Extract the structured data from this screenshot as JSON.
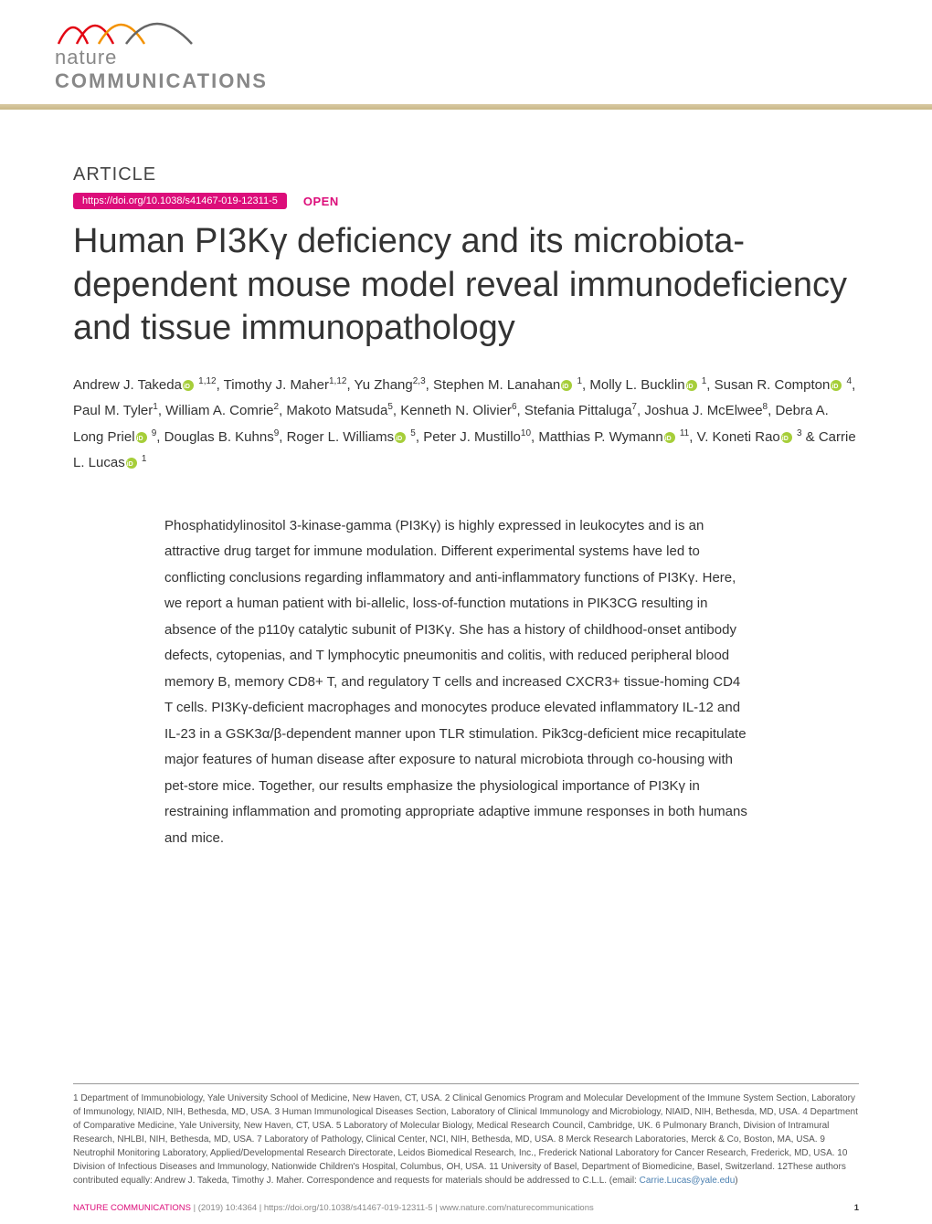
{
  "journal": {
    "name_line1": "nature",
    "name_line2": "COMMUNICATIONS",
    "wave_colors": [
      "#e30613",
      "#f39200",
      "#666666"
    ],
    "banner_gradient": [
      "#d8c9a3",
      "#c9b888"
    ]
  },
  "article_label": "ARTICLE",
  "doi": "https://doi.org/10.1038/s41467-019-12311-5",
  "doi_pill_bg": "#dc0d7a",
  "open_label": "OPEN",
  "title": "Human PI3Kγ deficiency and its microbiota-dependent mouse model reveal immunodeficiency and tissue immunopathology",
  "title_fontsize": 38,
  "authors_html": "Andrew J. Takeda{orcid} <sup>1,12</sup>, Timothy J. Maher<sup>1,12</sup>, Yu Zhang<sup>2,3</sup>, Stephen M. Lanahan{orcid} <sup>1</sup>, Molly L. Bucklin{orcid} <sup>1</sup>, Susan R. Compton{orcid} <sup>4</sup>, Paul M. Tyler<sup>1</sup>, William A. Comrie<sup>2</sup>, Makoto Matsuda<sup>5</sup>, Kenneth N. Olivier<sup>6</sup>, Stefania Pittaluga<sup>7</sup>, Joshua J. McElwee<sup>8</sup>, Debra A. Long Priel{orcid} <sup>9</sup>, Douglas B. Kuhns<sup>9</sup>, Roger L. Williams{orcid} <sup>5</sup>, Peter J. Mustillo<sup>10</sup>, Matthias P. Wymann{orcid} <sup>11</sup>, V. Koneti Rao{orcid} <sup>3</sup> & Carrie L. Lucas{orcid} <sup>1</sup>",
  "abstract": "Phosphatidylinositol 3-kinase-gamma (PI3Kγ) is highly expressed in leukocytes and is an attractive drug target for immune modulation. Different experimental systems have led to conflicting conclusions regarding inflammatory and anti-inflammatory functions of PI3Kγ. Here, we report a human patient with bi-allelic, loss-of-function mutations in PIK3CG resulting in absence of the p110γ catalytic subunit of PI3Kγ. She has a history of childhood-onset antibody defects, cytopenias, and T lymphocytic pneumonitis and colitis, with reduced peripheral blood memory B, memory CD8+ T, and regulatory T cells and increased CXCR3+ tissue-homing CD4 T cells. PI3Kγ-deficient macrophages and monocytes produce elevated inflammatory IL-12 and IL-23 in a GSK3α/β-dependent manner upon TLR stimulation. Pik3cg-deficient mice recapitulate major features of human disease after exposure to natural microbiota through co-housing with pet-store mice. Together, our results emphasize the physiological importance of PI3Kγ in restraining inflammation and promoting appropriate adaptive immune responses in both humans and mice.",
  "affiliations": "1 Department of Immunobiology, Yale University School of Medicine, New Haven, CT, USA. 2 Clinical Genomics Program and Molecular Development of the Immune System Section, Laboratory of Immunology, NIAID, NIH, Bethesda, MD, USA. 3 Human Immunological Diseases Section, Laboratory of Clinical Immunology and Microbiology, NIAID, NIH, Bethesda, MD, USA. 4 Department of Comparative Medicine, Yale University, New Haven, CT, USA. 5 Laboratory of Molecular Biology, Medical Research Council, Cambridge, UK. 6 Pulmonary Branch, Division of Intramural Research, NHLBI, NIH, Bethesda, MD, USA. 7 Laboratory of Pathology, Clinical Center, NCI, NIH, Bethesda, MD, USA. 8 Merck Research Laboratories, Merck & Co, Boston, MA, USA. 9 Neutrophil Monitoring Laboratory, Applied/Developmental Research Directorate, Leidos Biomedical Research, Inc., Frederick National Laboratory for Cancer Research, Frederick, MD, USA. 10 Division of Infectious Diseases and Immunology, Nationwide Children's Hospital, Columbus, OH, USA. 11 University of Basel, Department of Biomedicine, Basel, Switzerland. 12These authors contributed equally: Andrew J. Takeda, Timothy J. Maher. Correspondence and requests for materials should be addressed to C.L.L. (email: ",
  "corr_email": "Carrie.Lucas@yale.edu",
  "aff_tail": ")",
  "footer": {
    "journal": "NATURE COMMUNICATIONS",
    "citation": " |         (2019) 10:4364  | https://doi.org/10.1038/s41467-019-12311-5 | www.nature.com/naturecommunications",
    "page": "1"
  },
  "colors": {
    "text": "#333333",
    "accent": "#dc0d7a",
    "orcid": "#a6ce39",
    "link": "#4a7fb0"
  }
}
